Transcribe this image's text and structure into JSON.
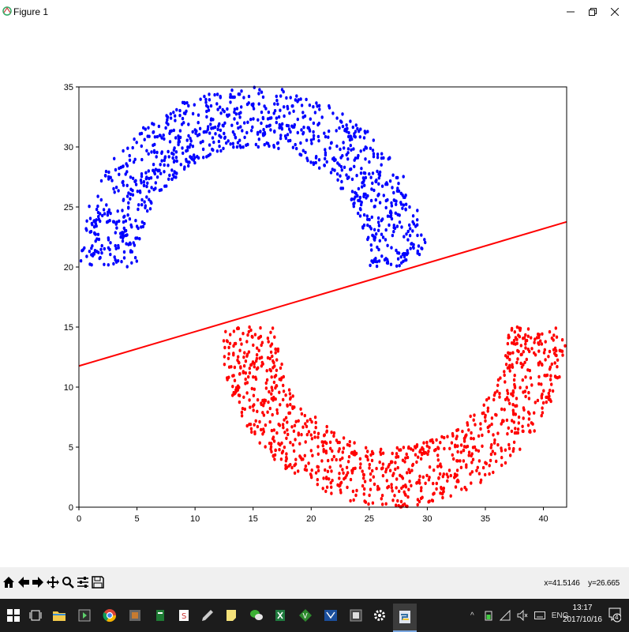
{
  "window": {
    "title": "Figure 1",
    "minimize_icon": "minimize-icon",
    "maximize_icon": "restore-icon",
    "close_icon": "close-icon"
  },
  "chart_data": {
    "type": "scatter",
    "xlim": [
      0,
      42
    ],
    "ylim": [
      0,
      35
    ],
    "xticks": [
      0,
      5,
      10,
      15,
      20,
      25,
      30,
      35,
      40
    ],
    "yticks": [
      0,
      5,
      10,
      15,
      20,
      25,
      30,
      35
    ],
    "grid": false,
    "series": [
      {
        "kind": "scatter",
        "color": "#0000ff",
        "shape": "upper half-moon",
        "center": [
          15,
          20
        ],
        "inner_radius": 10,
        "outer_radius": 15,
        "angle_range_deg": [
          0,
          180
        ],
        "points": 1000
      },
      {
        "kind": "scatter",
        "color": "#ff0000",
        "shape": "lower half-moon",
        "center": [
          27,
          15
        ],
        "inner_radius": 10,
        "outer_radius": 15,
        "angle_range_deg": [
          180,
          360
        ],
        "points": 1000
      },
      {
        "kind": "line",
        "color": "#ff0000",
        "x": [
          0,
          42
        ],
        "y": [
          11.76,
          23.76
        ]
      }
    ]
  },
  "toolbar": {
    "buttons": [
      "home-icon",
      "back-icon",
      "forward-icon",
      "pan-icon",
      "zoom-icon",
      "configure-subplots-icon",
      "save-icon"
    ],
    "x_readout": "x=41.5146",
    "y_readout": "y=26.665"
  },
  "taskbar": {
    "apps": [
      "start-icon",
      "task-view-icon",
      "file-explorer-icon",
      "media-player-icon",
      "chrome-icon",
      "app-icon",
      "app-icon",
      "slides-icon",
      "pen-icon",
      "notes-icon",
      "wechat-icon",
      "excel-icon",
      "vim-icon",
      "app-icon",
      "app-icon",
      "settings-icon",
      "python-icon"
    ],
    "lang": "ENG",
    "time": "13:17",
    "date": "2017/10/16",
    "notification_count": "4"
  },
  "colors": {
    "taskbar": "#1c1c1c",
    "toolbar": "#f0f0f0",
    "blue_points": "#0000ff",
    "red_points": "#ff0000"
  }
}
